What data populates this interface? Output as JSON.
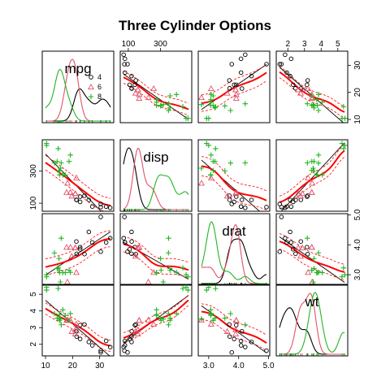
{
  "chart_data": {
    "type": "scatter",
    "matrix": true,
    "title": "Three Cylinder Options",
    "variables": [
      {
        "name": "mpg",
        "range": [
          10,
          34
        ],
        "ticks": [
          10,
          20,
          30
        ]
      },
      {
        "name": "disp",
        "range": [
          70,
          475
        ],
        "ticks": [
          100,
          300
        ]
      },
      {
        "name": "drat",
        "range": [
          2.76,
          4.93
        ],
        "ticks": [
          3.0,
          4.0,
          5.0
        ]
      },
      {
        "name": "wt",
        "range": [
          1.5,
          5.4
        ],
        "ticks": [
          2,
          3,
          4,
          5
        ]
      }
    ],
    "axis_ticks": {
      "top": {
        "mpg": [],
        "disp": [
          "100",
          "300"
        ],
        "drat": [],
        "wt": [
          "2",
          "3",
          "4",
          "5"
        ]
      },
      "bottom": {
        "mpg": [
          "10",
          "20",
          "30"
        ],
        "disp": [],
        "drat": [
          "3.0",
          "4.0",
          "5.0"
        ],
        "wt": []
      },
      "left": {
        "mpg": [],
        "disp": [
          "100",
          "300"
        ],
        "drat": [],
        "wt": [
          "2",
          "3",
          "4",
          "5"
        ]
      },
      "right": {
        "mpg": [
          "10",
          "20",
          "30"
        ],
        "disp": [],
        "drat": [
          "3.0",
          "4.0",
          "5.0"
        ],
        "wt": []
      }
    },
    "legend": {
      "position": "top-left panel",
      "entries": [
        {
          "label": "4",
          "color": "#000000",
          "symbol": "circle"
        },
        {
          "label": "6",
          "color": "#DF536B",
          "symbol": "triangle"
        },
        {
          "label": "8",
          "color": "#22B522",
          "symbol": "plus"
        }
      ]
    },
    "series": [
      {
        "name": "4",
        "color": "#000000",
        "symbol": "circle",
        "points": [
          {
            "mpg": 22.8,
            "disp": 108.0,
            "drat": 3.85,
            "wt": 2.32
          },
          {
            "mpg": 24.4,
            "disp": 146.7,
            "drat": 3.69,
            "wt": 3.19
          },
          {
            "mpg": 22.8,
            "disp": 140.8,
            "drat": 3.92,
            "wt": 3.15
          },
          {
            "mpg": 32.4,
            "disp": 78.7,
            "drat": 4.08,
            "wt": 2.2
          },
          {
            "mpg": 30.4,
            "disp": 75.7,
            "drat": 4.93,
            "wt": 1.615
          },
          {
            "mpg": 33.9,
            "disp": 71.1,
            "drat": 4.22,
            "wt": 1.835
          },
          {
            "mpg": 21.5,
            "disp": 120.1,
            "drat": 3.7,
            "wt": 2.465
          },
          {
            "mpg": 27.3,
            "disp": 79.0,
            "drat": 4.08,
            "wt": 1.935
          },
          {
            "mpg": 26.0,
            "disp": 120.3,
            "drat": 4.43,
            "wt": 2.14
          },
          {
            "mpg": 30.4,
            "disp": 95.1,
            "drat": 3.77,
            "wt": 1.513
          },
          {
            "mpg": 21.4,
            "disp": 121.0,
            "drat": 4.11,
            "wt": 2.78
          }
        ]
      },
      {
        "name": "6",
        "color": "#DF536B",
        "symbol": "triangle",
        "points": [
          {
            "mpg": 21.0,
            "disp": 160.0,
            "drat": 3.9,
            "wt": 2.62
          },
          {
            "mpg": 21.0,
            "disp": 160.0,
            "drat": 3.9,
            "wt": 2.875
          },
          {
            "mpg": 21.4,
            "disp": 258.0,
            "drat": 3.08,
            "wt": 3.215
          },
          {
            "mpg": 18.1,
            "disp": 225.0,
            "drat": 2.76,
            "wt": 3.46
          },
          {
            "mpg": 19.2,
            "disp": 167.6,
            "drat": 3.92,
            "wt": 3.44
          },
          {
            "mpg": 17.8,
            "disp": 167.6,
            "drat": 3.92,
            "wt": 3.44
          },
          {
            "mpg": 19.7,
            "disp": 145.0,
            "drat": 3.62,
            "wt": 2.77
          }
        ]
      },
      {
        "name": "8",
        "color": "#22B522",
        "symbol": "plus",
        "points": [
          {
            "mpg": 18.7,
            "disp": 360.0,
            "drat": 3.15,
            "wt": 3.44
          },
          {
            "mpg": 14.3,
            "disp": 360.0,
            "drat": 3.21,
            "wt": 3.57
          },
          {
            "mpg": 16.4,
            "disp": 275.8,
            "drat": 3.07,
            "wt": 4.07
          },
          {
            "mpg": 17.3,
            "disp": 275.8,
            "drat": 3.07,
            "wt": 3.73
          },
          {
            "mpg": 15.2,
            "disp": 275.8,
            "drat": 3.07,
            "wt": 3.78
          },
          {
            "mpg": 10.4,
            "disp": 472.0,
            "drat": 2.93,
            "wt": 5.25
          },
          {
            "mpg": 10.4,
            "disp": 460.0,
            "drat": 3.0,
            "wt": 5.424
          },
          {
            "mpg": 14.7,
            "disp": 440.0,
            "drat": 3.23,
            "wt": 5.345
          },
          {
            "mpg": 15.5,
            "disp": 318.0,
            "drat": 2.76,
            "wt": 3.52
          },
          {
            "mpg": 15.2,
            "disp": 304.0,
            "drat": 3.15,
            "wt": 3.435
          },
          {
            "mpg": 13.3,
            "disp": 350.0,
            "drat": 3.73,
            "wt": 3.84
          },
          {
            "mpg": 19.2,
            "disp": 400.0,
            "drat": 3.08,
            "wt": 3.845
          },
          {
            "mpg": 15.8,
            "disp": 351.0,
            "drat": 4.22,
            "wt": 3.17
          },
          {
            "mpg": 15.0,
            "disp": 301.0,
            "drat": 3.54,
            "wt": 3.57
          }
        ]
      }
    ],
    "overlays": {
      "regression_line_color": "#000000",
      "smoother_color": "#FF0000",
      "diagonal": "density per group"
    }
  }
}
